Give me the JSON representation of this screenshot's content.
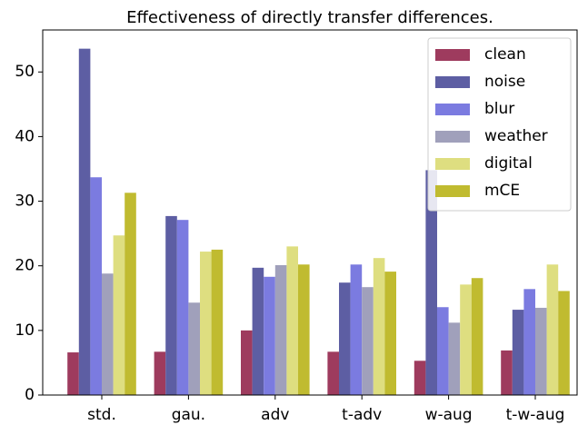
{
  "chart_data": {
    "type": "bar",
    "title": "Effectiveness of directly transfer differences.",
    "categories": [
      "std.",
      "gau.",
      "adv",
      "t-adv",
      "w-aug",
      "t-w-aug"
    ],
    "series": [
      {
        "name": "clean",
        "color": "#9e3b5e",
        "values": [
          6.6,
          6.7,
          10.0,
          6.7,
          5.3,
          6.9
        ]
      },
      {
        "name": "noise",
        "color": "#5d5ea3",
        "values": [
          53.6,
          27.7,
          19.7,
          17.4,
          34.8,
          13.2
        ]
      },
      {
        "name": "blur",
        "color": "#7b7be0",
        "values": [
          33.7,
          27.1,
          18.3,
          20.2,
          13.6,
          16.4
        ]
      },
      {
        "name": "weather",
        "color": "#a0a0bb",
        "values": [
          18.8,
          14.3,
          20.1,
          16.7,
          11.2,
          13.5
        ]
      },
      {
        "name": "digital",
        "color": "#dede80",
        "values": [
          24.7,
          22.2,
          23.0,
          21.2,
          17.1,
          20.2
        ]
      },
      {
        "name": "mCE",
        "color": "#c0bb30",
        "values": [
          31.3,
          22.5,
          20.2,
          19.1,
          18.1,
          16.1
        ]
      }
    ],
    "ylim": [
      0,
      56.5
    ],
    "yticks": [
      0,
      10,
      20,
      30,
      40,
      50
    ],
    "grid": false,
    "legend": "upper right"
  }
}
